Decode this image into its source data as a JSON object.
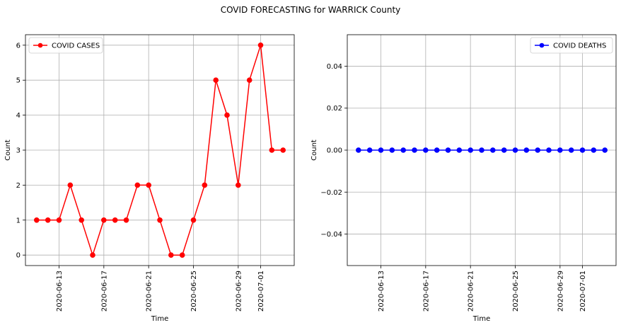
{
  "figure": {
    "title": "COVID FORECASTING for WARRICK County"
  },
  "chart_data": [
    {
      "type": "line",
      "title": "",
      "xlabel": "Time",
      "ylabel": "Count",
      "x": [
        "2020-06-11",
        "2020-06-12",
        "2020-06-13",
        "2020-06-14",
        "2020-06-15",
        "2020-06-16",
        "2020-06-17",
        "2020-06-18",
        "2020-06-19",
        "2020-06-20",
        "2020-06-21",
        "2020-06-22",
        "2020-06-23",
        "2020-06-24",
        "2020-06-25",
        "2020-06-26",
        "2020-06-27",
        "2020-06-28",
        "2020-06-29",
        "2020-06-30",
        "2020-07-01",
        "2020-07-02",
        "2020-07-03"
      ],
      "series": [
        {
          "name": "COVID CASES",
          "color": "#ff0000",
          "marker": "circle",
          "values": [
            1,
            1,
            1,
            2,
            1,
            0,
            1,
            1,
            1,
            2,
            2,
            1,
            0,
            0,
            1,
            2,
            5,
            4,
            2,
            5,
            6,
            3,
            3
          ]
        }
      ],
      "xticks": [
        "2020-06-13",
        "2020-06-17",
        "2020-06-21",
        "2020-06-25",
        "2020-06-29",
        "2020-07-01"
      ],
      "yticks": [
        0,
        1,
        2,
        3,
        4,
        5,
        6
      ],
      "ylim": [
        -0.3,
        6.3
      ],
      "xlim": [
        "2020-06-10",
        "2020-07-04"
      ],
      "grid": true,
      "legend": "top-left"
    },
    {
      "type": "line",
      "title": "",
      "xlabel": "Time",
      "ylabel": "Count",
      "x": [
        "2020-06-11",
        "2020-06-12",
        "2020-06-13",
        "2020-06-14",
        "2020-06-15",
        "2020-06-16",
        "2020-06-17",
        "2020-06-18",
        "2020-06-19",
        "2020-06-20",
        "2020-06-21",
        "2020-06-22",
        "2020-06-23",
        "2020-06-24",
        "2020-06-25",
        "2020-06-26",
        "2020-06-27",
        "2020-06-28",
        "2020-06-29",
        "2020-06-30",
        "2020-07-01",
        "2020-07-02",
        "2020-07-03"
      ],
      "series": [
        {
          "name": "COVID DEATHS",
          "color": "#0000ff",
          "marker": "circle",
          "values": [
            0,
            0,
            0,
            0,
            0,
            0,
            0,
            0,
            0,
            0,
            0,
            0,
            0,
            0,
            0,
            0,
            0,
            0,
            0,
            0,
            0,
            0,
            0
          ]
        }
      ],
      "xticks": [
        "2020-06-13",
        "2020-06-17",
        "2020-06-21",
        "2020-06-25",
        "2020-06-29",
        "2020-07-01"
      ],
      "yticks": [
        -0.04,
        -0.02,
        0.0,
        0.02,
        0.04
      ],
      "ytick_labels": [
        "−0.04",
        "−0.02",
        "0.00",
        "0.02",
        "0.04"
      ],
      "ylim": [
        -0.055,
        0.055
      ],
      "xlim": [
        "2020-06-10",
        "2020-07-04"
      ],
      "grid": true,
      "legend": "top-right"
    }
  ]
}
